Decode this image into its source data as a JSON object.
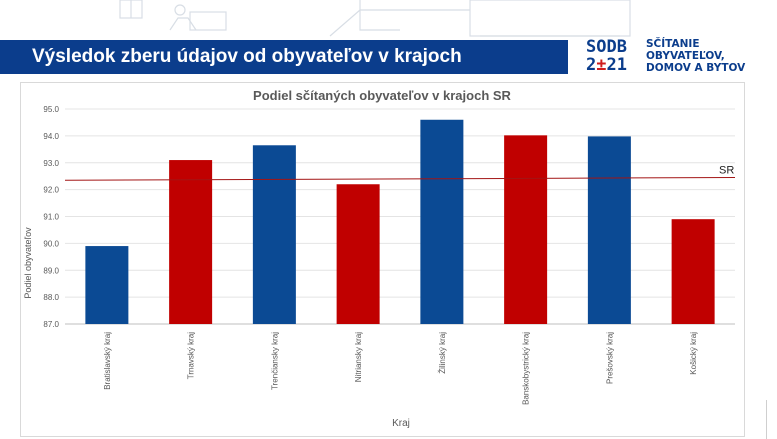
{
  "header": {
    "title": "Výsledok zberu údajov od obyvateľov v krajoch"
  },
  "logo": {
    "code_line1": "SODB",
    "code_line2_a": "2",
    "code_line2_b": "±",
    "code_line2_c": "21",
    "text_line1": "SČÍTANIE",
    "text_line2": "OBYVATEĽOV,",
    "text_line3": "DOMOV A BYTOV"
  },
  "colors": {
    "brand_blue": "#0b3d8c",
    "brand_red": "#d01c1c",
    "bar_blue": "#0b4a94",
    "bar_red": "#c00000",
    "reference_line": "#a31515"
  },
  "chart_data": {
    "type": "bar",
    "title": "Podiel sčítaných obyvateľov v krajoch SR",
    "xlabel": "Kraj",
    "ylabel": "Podiel obyvateľov",
    "ylim": [
      87.0,
      95.0
    ],
    "yticks": [
      "87.0",
      "88.0",
      "89.0",
      "90.0",
      "91.0",
      "92.0",
      "93.0",
      "94.0",
      "95.0"
    ],
    "categories": [
      "Bratislavský kraj",
      "Trnavský kraj",
      "Trenčiansky kraj",
      "Nitriansky kraj",
      "Žilinský kraj",
      "Banskobystrický kraj",
      "Prešovský kraj",
      "Košický kraj"
    ],
    "values": [
      89.9,
      93.1,
      93.65,
      92.2,
      94.6,
      94.02,
      93.98,
      90.9
    ],
    "bar_colors": [
      "blue",
      "red",
      "blue",
      "red",
      "blue",
      "red",
      "blue",
      "red"
    ],
    "reference_line": {
      "label": "SR",
      "start_value": 92.35,
      "end_value": 92.45
    },
    "grid": "horizontal",
    "legend": "none"
  }
}
